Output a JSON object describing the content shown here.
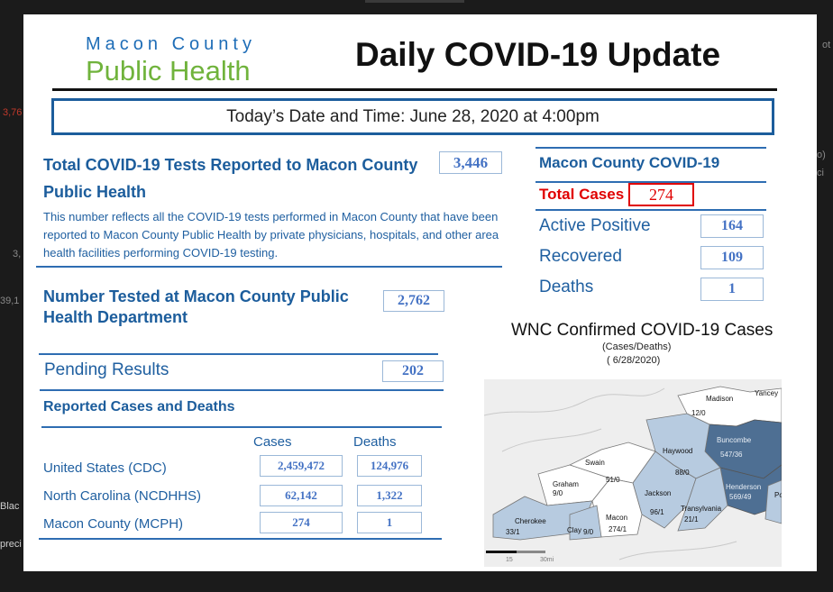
{
  "background_fragments": [
    "3,76",
    "o)",
    "ci",
    "3,",
    "39,1",
    "Blac",
    "preci",
    "ot"
  ],
  "logo": {
    "line1": "Macon County",
    "line2": "Public Health"
  },
  "title": "Daily COVID-19 Update",
  "date": "Today’s Date and Time:  June 28, 2020 at 4:00pm",
  "tests": {
    "title": "Total COVID-19 Tests Reported to Macon County Public Health",
    "value": "3,446",
    "description": "This number reflects all the COVID-19 tests performed in Macon County that have been reported to Macon County Public Health by private physicians, hospitals, and other area health facilities performing COVID-19 testing."
  },
  "tested": {
    "title": "Number Tested at Macon County Public Health Department",
    "value": "2,762"
  },
  "pending": {
    "label": "Pending Results",
    "value": "202"
  },
  "reported": {
    "title": "Reported Cases and Deaths",
    "headers": {
      "cases": "Cases",
      "deaths": "Deaths"
    },
    "rows": [
      {
        "label": "United States (CDC)",
        "cases": "2,459,472",
        "deaths": "124,976"
      },
      {
        "label": "North Carolina (NCDHHS)",
        "cases": "62,142",
        "deaths": "1,322"
      },
      {
        "label": "Macon County (MCPH)",
        "cases": "274",
        "deaths": "1"
      }
    ]
  },
  "macon": {
    "title": "Macon County COVID-19",
    "total_label": "Total Cases",
    "total_value": "274",
    "stats": [
      {
        "label": "Active Positive",
        "value": "164"
      },
      {
        "label": "Recovered",
        "value": "109"
      },
      {
        "label": "Deaths",
        "value": "1"
      }
    ]
  },
  "wnc": {
    "title": "WNC Confirmed COVID-19 Cases",
    "sub1": "(Cases/Deaths)",
    "sub2": "( 6/28/2020)",
    "counties": [
      {
        "name": "Madison",
        "value": "12/0"
      },
      {
        "name": "Yancey",
        "value": ""
      },
      {
        "name": "Buncombe",
        "value": "547/36"
      },
      {
        "name": "Haywood",
        "value": "88/0"
      },
      {
        "name": "Swain",
        "value": "51/0"
      },
      {
        "name": "Graham",
        "value": "9/0"
      },
      {
        "name": "Jackson",
        "value": "96/1"
      },
      {
        "name": "Transylvania",
        "value": "21/1"
      },
      {
        "name": "Henderson",
        "value": "569/49"
      },
      {
        "name": "Macon",
        "value": "274/1"
      },
      {
        "name": "Cherokee",
        "value": "33/1"
      },
      {
        "name": "Clay",
        "value": "9/0"
      },
      {
        "name": "Po",
        "value": ""
      }
    ],
    "scale": {
      "label_a": "15",
      "label_b": "30mi"
    }
  },
  "colors": {
    "brand_blue": "#1c5d9c",
    "brand_green": "#70b33c",
    "alert_red": "#e00000",
    "map_dark": "#4e6f93",
    "map_light": "#b7cbe0"
  }
}
